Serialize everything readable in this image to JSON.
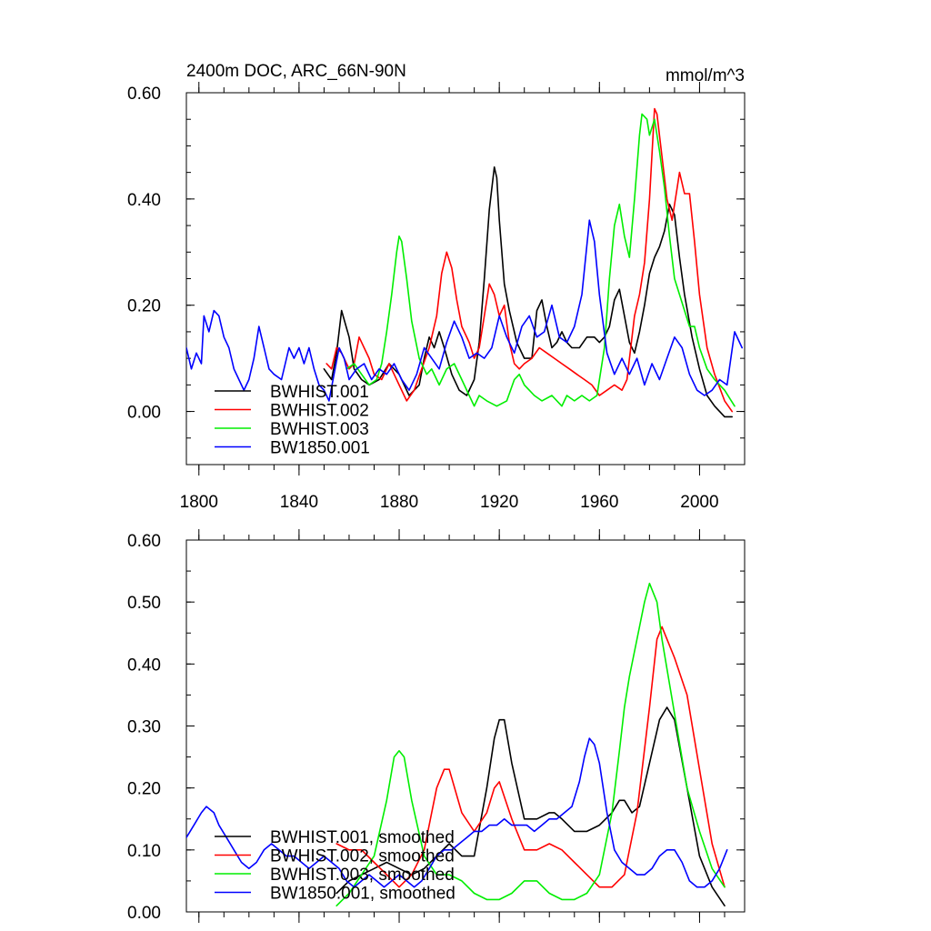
{
  "chart_data": [
    {
      "type": "line",
      "title": "2400m DOC, ARC_66N-90N",
      "units": "mmol/m^3",
      "xlim": [
        1795,
        2018
      ],
      "ylim": [
        -0.1,
        0.6
      ],
      "x_ticks": [
        1800,
        1840,
        1880,
        1920,
        1960,
        2000
      ],
      "y_ticks": [
        0.0,
        0.2,
        0.4,
        0.6
      ],
      "y_tick_labels": [
        "0.00",
        "0.20",
        "0.40",
        "0.60"
      ],
      "legend_position": "bottom-left",
      "series": [
        {
          "name": "BWHIST.001",
          "color": "#000000",
          "x": [
            1850,
            1853,
            1855,
            1857,
            1860,
            1862,
            1865,
            1868,
            1872,
            1876,
            1880,
            1884,
            1888,
            1890,
            1892,
            1894,
            1896,
            1898,
            1901,
            1904,
            1907,
            1910,
            1912,
            1914,
            1916,
            1918,
            1919,
            1920,
            1922,
            1924,
            1927,
            1930,
            1933,
            1935,
            1937,
            1939,
            1941,
            1943,
            1945,
            1947,
            1949,
            1952,
            1955,
            1958,
            1960,
            1962,
            1964,
            1966,
            1968,
            1970,
            1972,
            1974,
            1976,
            1978,
            1980,
            1982,
            1984,
            1986,
            1988,
            1990,
            1992,
            1994,
            1997,
            2000,
            2003,
            2006,
            2010,
            2013
          ],
          "y": [
            0.08,
            0.06,
            0.11,
            0.19,
            0.14,
            0.08,
            0.06,
            0.05,
            0.06,
            0.09,
            0.07,
            0.03,
            0.05,
            0.1,
            0.14,
            0.12,
            0.15,
            0.12,
            0.07,
            0.04,
            0.03,
            0.06,
            0.13,
            0.25,
            0.38,
            0.46,
            0.44,
            0.36,
            0.24,
            0.19,
            0.13,
            0.1,
            0.1,
            0.19,
            0.21,
            0.16,
            0.12,
            0.13,
            0.15,
            0.13,
            0.12,
            0.12,
            0.14,
            0.14,
            0.13,
            0.14,
            0.16,
            0.21,
            0.23,
            0.18,
            0.13,
            0.11,
            0.15,
            0.2,
            0.26,
            0.29,
            0.31,
            0.34,
            0.39,
            0.37,
            0.29,
            0.22,
            0.14,
            0.08,
            0.03,
            0.01,
            -0.01,
            -0.01
          ]
        },
        {
          "name": "BWHIST.002",
          "color": "#ff0000",
          "x": [
            1851,
            1853,
            1855,
            1857,
            1860,
            1862,
            1864,
            1866,
            1868,
            1870,
            1873,
            1876,
            1878,
            1880,
            1883,
            1886,
            1889,
            1892,
            1895,
            1897,
            1899,
            1901,
            1903,
            1905,
            1908,
            1910,
            1912,
            1914,
            1916,
            1918,
            1920,
            1922,
            1924,
            1926,
            1928,
            1930,
            1933,
            1936,
            1939,
            1942,
            1945,
            1948,
            1951,
            1954,
            1957,
            1960,
            1963,
            1966,
            1969,
            1971,
            1974,
            1976,
            1978,
            1980,
            1982,
            1983,
            1985,
            1987,
            1989,
            1991,
            1992,
            1994,
            1996,
            1998,
            2000,
            2003,
            2006,
            2010,
            2013
          ],
          "y": [
            0.09,
            0.08,
            0.12,
            0.11,
            0.08,
            0.09,
            0.14,
            0.12,
            0.1,
            0.07,
            0.06,
            0.09,
            0.07,
            0.05,
            0.02,
            0.04,
            0.08,
            0.12,
            0.18,
            0.26,
            0.3,
            0.27,
            0.21,
            0.16,
            0.13,
            0.1,
            0.12,
            0.18,
            0.24,
            0.22,
            0.18,
            0.2,
            0.13,
            0.09,
            0.08,
            0.09,
            0.1,
            0.12,
            0.11,
            0.1,
            0.09,
            0.08,
            0.07,
            0.06,
            0.05,
            0.03,
            0.04,
            0.05,
            0.04,
            0.06,
            0.18,
            0.22,
            0.28,
            0.4,
            0.57,
            0.56,
            0.48,
            0.4,
            0.36,
            0.42,
            0.45,
            0.41,
            0.41,
            0.32,
            0.22,
            0.12,
            0.07,
            0.02,
            0.0
          ]
        },
        {
          "name": "BWHIST.003",
          "color": "#00ee00",
          "x": [
            1859,
            1862,
            1865,
            1868,
            1871,
            1873,
            1875,
            1877,
            1879,
            1880,
            1881,
            1883,
            1885,
            1888,
            1891,
            1893,
            1896,
            1899,
            1902,
            1905,
            1908,
            1910,
            1912,
            1915,
            1919,
            1923,
            1926,
            1928,
            1930,
            1932,
            1934,
            1937,
            1941,
            1945,
            1947,
            1950,
            1953,
            1956,
            1959,
            1962,
            1964,
            1966,
            1968,
            1970,
            1972,
            1974,
            1976,
            1977,
            1979,
            1980,
            1982,
            1984,
            1986,
            1988,
            1990,
            1992,
            1994,
            1996,
            1998,
            2000,
            2003,
            2006,
            2010,
            2014
          ],
          "y": [
            0.08,
            0.09,
            0.07,
            0.05,
            0.06,
            0.09,
            0.15,
            0.22,
            0.3,
            0.33,
            0.32,
            0.25,
            0.17,
            0.1,
            0.07,
            0.08,
            0.05,
            0.08,
            0.09,
            0.06,
            0.03,
            0.01,
            0.03,
            0.02,
            0.01,
            0.02,
            0.06,
            0.07,
            0.05,
            0.04,
            0.03,
            0.02,
            0.03,
            0.01,
            0.03,
            0.02,
            0.03,
            0.02,
            0.03,
            0.12,
            0.25,
            0.35,
            0.39,
            0.33,
            0.29,
            0.4,
            0.52,
            0.56,
            0.55,
            0.52,
            0.55,
            0.49,
            0.42,
            0.33,
            0.25,
            0.22,
            0.19,
            0.16,
            0.16,
            0.12,
            0.08,
            0.06,
            0.04,
            0.01
          ]
        },
        {
          "name": "BW1850.001",
          "color": "#0000ff",
          "x": [
            1795,
            1797,
            1799,
            1801,
            1802,
            1804,
            1806,
            1808,
            1810,
            1812,
            1814,
            1816,
            1818,
            1820,
            1822,
            1824,
            1826,
            1828,
            1830,
            1833,
            1836,
            1838,
            1840,
            1842,
            1844,
            1846,
            1848,
            1850,
            1852,
            1854,
            1856,
            1858,
            1860,
            1863,
            1866,
            1869,
            1872,
            1875,
            1878,
            1881,
            1884,
            1887,
            1890,
            1893,
            1896,
            1899,
            1902,
            1905,
            1908,
            1911,
            1914,
            1917,
            1920,
            1923,
            1926,
            1929,
            1932,
            1935,
            1938,
            1941,
            1944,
            1947,
            1950,
            1953,
            1956,
            1958,
            1960,
            1963,
            1966,
            1969,
            1972,
            1975,
            1978,
            1981,
            1984,
            1987,
            1990,
            1993,
            1996,
            1999,
            2002,
            2005,
            2008,
            2011,
            2014,
            2017
          ],
          "y": [
            0.12,
            0.08,
            0.11,
            0.09,
            0.18,
            0.15,
            0.19,
            0.18,
            0.14,
            0.12,
            0.08,
            0.06,
            0.04,
            0.06,
            0.1,
            0.16,
            0.12,
            0.08,
            0.07,
            0.06,
            0.12,
            0.1,
            0.12,
            0.09,
            0.12,
            0.08,
            0.05,
            0.04,
            0.02,
            0.07,
            0.12,
            0.1,
            0.06,
            0.08,
            0.09,
            0.06,
            0.08,
            0.07,
            0.09,
            0.06,
            0.04,
            0.07,
            0.12,
            0.1,
            0.08,
            0.13,
            0.17,
            0.14,
            0.1,
            0.11,
            0.1,
            0.12,
            0.18,
            0.14,
            0.11,
            0.16,
            0.18,
            0.14,
            0.15,
            0.2,
            0.14,
            0.13,
            0.16,
            0.22,
            0.36,
            0.32,
            0.22,
            0.11,
            0.07,
            0.1,
            0.07,
            0.1,
            0.05,
            0.09,
            0.06,
            0.1,
            0.14,
            0.12,
            0.07,
            0.04,
            0.03,
            0.04,
            0.06,
            0.05,
            0.15,
            0.12
          ]
        }
      ]
    },
    {
      "type": "line",
      "title": "",
      "xlim": [
        1795,
        2018
      ],
      "ylim": [
        0.0,
        0.6
      ],
      "x_ticks": [
        1800,
        1840,
        1880,
        1920,
        1960,
        2000
      ],
      "y_ticks": [
        0.0,
        0.1,
        0.2,
        0.3,
        0.4,
        0.5,
        0.6
      ],
      "y_tick_labels": [
        "0.00",
        "0.10",
        "0.20",
        "0.30",
        "0.40",
        "0.50",
        "0.60"
      ],
      "legend_position": "bottom-left",
      "series": [
        {
          "name": "BWHIST.001, smoothed",
          "color": "#000000",
          "x": [
            1855,
            1860,
            1865,
            1870,
            1875,
            1880,
            1885,
            1890,
            1895,
            1900,
            1905,
            1910,
            1915,
            1918,
            1920,
            1922,
            1925,
            1930,
            1935,
            1940,
            1942,
            1945,
            1950,
            1955,
            1960,
            1965,
            1968,
            1970,
            1973,
            1976,
            1980,
            1984,
            1987,
            1990,
            1995,
            2000,
            2005,
            2010
          ],
          "y": [
            0.03,
            0.05,
            0.06,
            0.07,
            0.08,
            0.07,
            0.06,
            0.07,
            0.09,
            0.11,
            0.09,
            0.09,
            0.2,
            0.28,
            0.31,
            0.31,
            0.24,
            0.15,
            0.15,
            0.16,
            0.16,
            0.15,
            0.13,
            0.13,
            0.14,
            0.16,
            0.18,
            0.18,
            0.16,
            0.17,
            0.24,
            0.31,
            0.33,
            0.31,
            0.2,
            0.09,
            0.04,
            0.01
          ]
        },
        {
          "name": "BWHIST.002, smoothed",
          "color": "#ff0000",
          "x": [
            1855,
            1860,
            1865,
            1870,
            1875,
            1880,
            1885,
            1890,
            1893,
            1895,
            1898,
            1900,
            1905,
            1910,
            1915,
            1918,
            1920,
            1925,
            1930,
            1935,
            1940,
            1945,
            1950,
            1955,
            1960,
            1965,
            1970,
            1975,
            1980,
            1983,
            1985,
            1988,
            1990,
            1995,
            2000,
            2005,
            2010
          ],
          "y": [
            0.11,
            0.1,
            0.1,
            0.08,
            0.06,
            0.04,
            0.06,
            0.1,
            0.16,
            0.2,
            0.23,
            0.23,
            0.16,
            0.13,
            0.16,
            0.2,
            0.21,
            0.15,
            0.1,
            0.1,
            0.11,
            0.1,
            0.08,
            0.06,
            0.04,
            0.04,
            0.06,
            0.16,
            0.33,
            0.44,
            0.46,
            0.43,
            0.41,
            0.35,
            0.23,
            0.11,
            0.04
          ]
        },
        {
          "name": "BWHIST.003, smoothed",
          "color": "#00ee00",
          "x": [
            1855,
            1860,
            1865,
            1870,
            1875,
            1878,
            1880,
            1882,
            1885,
            1890,
            1895,
            1900,
            1905,
            1910,
            1915,
            1920,
            1925,
            1930,
            1935,
            1940,
            1945,
            1950,
            1955,
            1960,
            1965,
            1968,
            1970,
            1972,
            1975,
            1978,
            1980,
            1983,
            1985,
            1990,
            1995,
            2000,
            2005,
            2010
          ],
          "y": [
            0.01,
            0.03,
            0.06,
            0.09,
            0.18,
            0.25,
            0.26,
            0.25,
            0.18,
            0.09,
            0.06,
            0.06,
            0.05,
            0.03,
            0.02,
            0.02,
            0.03,
            0.05,
            0.05,
            0.03,
            0.02,
            0.02,
            0.03,
            0.06,
            0.16,
            0.26,
            0.33,
            0.38,
            0.44,
            0.5,
            0.53,
            0.5,
            0.44,
            0.32,
            0.2,
            0.13,
            0.07,
            0.04
          ]
        },
        {
          "name": "BW1850.001, smoothed",
          "color": "#0000ff",
          "x": [
            1795,
            1798,
            1801,
            1803,
            1806,
            1808,
            1811,
            1814,
            1817,
            1820,
            1823,
            1826,
            1829,
            1832,
            1835,
            1838,
            1841,
            1844,
            1847,
            1850,
            1853,
            1856,
            1859,
            1862,
            1865,
            1868,
            1871,
            1874,
            1877,
            1880,
            1883,
            1886,
            1889,
            1892,
            1895,
            1898,
            1901,
            1904,
            1907,
            1910,
            1913,
            1916,
            1919,
            1922,
            1925,
            1928,
            1931,
            1934,
            1937,
            1940,
            1943,
            1946,
            1949,
            1952,
            1954,
            1956,
            1958,
            1960,
            1963,
            1966,
            1969,
            1972,
            1975,
            1978,
            1981,
            1984,
            1987,
            1990,
            1993,
            1996,
            1999,
            2002,
            2005,
            2008,
            2011
          ],
          "y": [
            0.12,
            0.14,
            0.16,
            0.17,
            0.16,
            0.14,
            0.12,
            0.1,
            0.08,
            0.07,
            0.08,
            0.1,
            0.11,
            0.1,
            0.09,
            0.09,
            0.08,
            0.07,
            0.08,
            0.09,
            0.08,
            0.07,
            0.05,
            0.04,
            0.05,
            0.06,
            0.05,
            0.04,
            0.05,
            0.06,
            0.05,
            0.04,
            0.05,
            0.07,
            0.09,
            0.1,
            0.1,
            0.11,
            0.12,
            0.13,
            0.13,
            0.14,
            0.14,
            0.15,
            0.14,
            0.14,
            0.14,
            0.13,
            0.14,
            0.15,
            0.15,
            0.16,
            0.17,
            0.21,
            0.25,
            0.28,
            0.27,
            0.24,
            0.16,
            0.1,
            0.08,
            0.07,
            0.06,
            0.06,
            0.07,
            0.09,
            0.1,
            0.1,
            0.08,
            0.05,
            0.04,
            0.04,
            0.05,
            0.07,
            0.1
          ]
        }
      ]
    }
  ]
}
